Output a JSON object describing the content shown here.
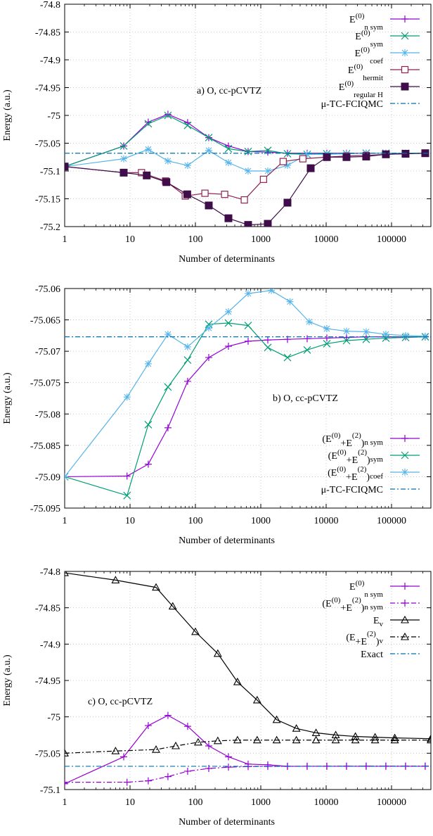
{
  "chart_data": [
    {
      "type": "line",
      "annotation": "a) O, cc-pCVTZ",
      "xlabel": "Number of determinants",
      "ylabel": "Energy (a.u.)",
      "xscale": "log",
      "xlim": [
        1,
        400000
      ],
      "ylim": [
        -75.2,
        -74.8
      ],
      "xticks": [
        1,
        10,
        100,
        1000,
        10000,
        100000
      ],
      "xtick_labels": [
        "1",
        "10",
        "100",
        "1000",
        "10000",
        "100000"
      ],
      "yticks": [
        -75.2,
        -75.15,
        -75.1,
        -75.05,
        -75,
        -74.95,
        -74.9,
        -74.85,
        -74.8
      ],
      "ytick_labels": [
        "-75.2",
        "-75.15",
        "-75.1",
        "-75.05",
        "-75",
        "-74.95",
        "-74.9",
        "-74.85",
        "-74.8"
      ],
      "grid": true,
      "legend_position": "top-right",
      "series": [
        {
          "legend_main": "E",
          "legend_sup": "(0)",
          "legend_sub": "n sym",
          "legend_pre": "",
          "legend_mid": "",
          "legend_post": "",
          "color": "#9400d3",
          "marker": "plus",
          "dash": "solid",
          "x": [
            1,
            8,
            19,
            38,
            76,
            160,
            320,
            640,
            1280,
            2560,
            5120,
            10240,
            20480,
            40960,
            81920,
            163840,
            327680
          ],
          "y": [
            -75.092,
            -75.055,
            -75.012,
            -74.998,
            -75.013,
            -75.04,
            -75.055,
            -75.065,
            -75.066,
            -75.068,
            -75.068,
            -75.068,
            -75.068,
            -75.068,
            -75.068,
            -75.068,
            -75.068
          ]
        },
        {
          "legend_main": "E",
          "legend_sup": "(0)",
          "legend_sub": "sym",
          "legend_pre": "",
          "legend_mid": "",
          "legend_post": "",
          "color": "#009e73",
          "marker": "x",
          "dash": "solid",
          "x": [
            1,
            8,
            19,
            38,
            76,
            160,
            320,
            640,
            1280,
            2560,
            5120,
            10240,
            20480,
            40960,
            81920,
            163840,
            327680
          ],
          "y": [
            -75.092,
            -75.055,
            -75.015,
            -75.0,
            -75.018,
            -75.04,
            -75.06,
            -75.065,
            -75.063,
            -75.069,
            -75.07,
            -75.069,
            -75.069,
            -75.068,
            -75.068,
            -75.068,
            -75.068
          ]
        },
        {
          "legend_main": "E",
          "legend_sup": "(0)",
          "legend_sub": "coef",
          "legend_pre": "",
          "legend_mid": "",
          "legend_post": "",
          "color": "#56b4e9",
          "marker": "star",
          "dash": "solid",
          "x": [
            1,
            8,
            19,
            38,
            76,
            160,
            320,
            640,
            1280,
            2560,
            5120,
            10240,
            20480,
            40960,
            81920,
            163840,
            327680
          ],
          "y": [
            -75.092,
            -75.078,
            -75.061,
            -75.082,
            -75.09,
            -75.063,
            -75.085,
            -75.1,
            -75.1,
            -75.09,
            -75.07,
            -75.07,
            -75.069,
            -75.068,
            -75.068,
            -75.068,
            -75.068
          ]
        },
        {
          "legend_main": "E",
          "legend_sup": "(0)",
          "legend_sub": "hermit",
          "legend_pre": "",
          "legend_mid": "",
          "legend_post": "",
          "color": "#8b2252",
          "marker": "square-open",
          "dash": "solid",
          "x": [
            1,
            8,
            15,
            35,
            70,
            140,
            280,
            560,
            1100,
            2200,
            4400,
            10240,
            20480,
            40960,
            81920,
            163840,
            327680
          ],
          "y": [
            -75.092,
            -75.103,
            -75.103,
            -75.118,
            -75.145,
            -75.14,
            -75.142,
            -75.152,
            -75.115,
            -75.083,
            -75.078,
            -75.075,
            -75.073,
            -75.072,
            -75.07,
            -75.069,
            -75.068
          ]
        },
        {
          "legend_main": "E",
          "legend_sup": "(0)",
          "legend_sub": "regular H",
          "legend_pre": "",
          "legend_mid": "",
          "legend_post": "",
          "color": "#3f0d4a",
          "marker": "square-filled",
          "dash": "solid",
          "x": [
            1,
            8,
            18,
            36,
            75,
            160,
            320,
            640,
            1280,
            2560,
            5800,
            10240,
            20480,
            40960,
            81920,
            163840,
            327680
          ],
          "y": [
            -75.092,
            -75.103,
            -75.108,
            -75.12,
            -75.142,
            -75.162,
            -75.185,
            -75.197,
            -75.195,
            -75.157,
            -75.095,
            -75.075,
            -75.075,
            -75.074,
            -75.07,
            -75.069,
            -75.068
          ]
        },
        {
          "legend_main": "μ-TC-FCIQMC",
          "legend_sup": "",
          "legend_sub": "",
          "legend_pre": "",
          "legend_mid": "",
          "legend_post": "",
          "color": "#0072b2",
          "marker": "none",
          "dash": "dashdot",
          "hline": -75.068
        }
      ]
    },
    {
      "type": "line",
      "annotation": "b) O, cc-pCVTZ",
      "xlabel": "Number of determinants",
      "ylabel": "Energy (a.u.)",
      "xscale": "log",
      "xlim": [
        1,
        400000
      ],
      "ylim": [
        -75.095,
        -75.06
      ],
      "xticks": [
        1,
        10,
        100,
        1000,
        10000,
        100000
      ],
      "xtick_labels": [
        "1",
        "10",
        "100",
        "1000",
        "10000",
        "100000"
      ],
      "yticks": [
        -75.095,
        -75.09,
        -75.085,
        -75.08,
        -75.075,
        -75.07,
        -75.065,
        -75.06
      ],
      "ytick_labels": [
        "-75.095",
        "-75.09",
        "-75.085",
        "-75.08",
        "-75.075",
        "-75.07",
        "-75.065",
        "-75.06"
      ],
      "grid": true,
      "legend_position": "bottom-right",
      "series": [
        {
          "legend_main": "",
          "legend_sup": "(0)",
          "legend_sub": "n sym",
          "legend_pre": "(E",
          "legend_mid": "+E",
          "legend_post": ")",
          "legend_sup2": "(2)",
          "color": "#9400d3",
          "marker": "plus",
          "dash": "solid",
          "x": [
            1,
            9,
            19,
            38,
            76,
            160,
            320,
            640,
            1280,
            2560,
            5120,
            10240,
            20480,
            40960,
            81920,
            163840,
            327680
          ],
          "y": [
            -75.09,
            -75.0899,
            -75.088,
            -75.0822,
            -75.0748,
            -75.071,
            -75.0692,
            -75.0684,
            -75.0682,
            -75.0681,
            -75.068,
            -75.0679,
            -75.0678,
            -75.0677,
            -75.0677,
            -75.0677,
            -75.0677
          ]
        },
        {
          "legend_main": "",
          "legend_sup": "(0)",
          "legend_sub": "sym",
          "legend_pre": "(E",
          "legend_mid": "+E",
          "legend_post": ")",
          "legend_sup2": "(2)",
          "color": "#009e73",
          "marker": "x",
          "dash": "solid",
          "x": [
            1,
            9,
            19,
            38,
            76,
            160,
            320,
            640,
            1280,
            2560,
            5120,
            10240,
            20480,
            40960,
            81920,
            163840,
            327680
          ],
          "y": [
            -75.09,
            -75.093,
            -75.0817,
            -75.0757,
            -75.0714,
            -75.0657,
            -75.0655,
            -75.0659,
            -75.0694,
            -75.071,
            -75.0698,
            -75.0688,
            -75.0683,
            -75.0681,
            -75.0679,
            -75.0678,
            -75.0677
          ]
        },
        {
          "legend_main": "",
          "legend_sup": "(0)",
          "legend_sub": "coef",
          "legend_pre": "(E",
          "legend_mid": "+E",
          "legend_post": ")",
          "legend_sup2": "(2)",
          "color": "#56b4e9",
          "marker": "star",
          "dash": "solid",
          "x": [
            1,
            9,
            19,
            38,
            76,
            160,
            320,
            640,
            1450,
            2800,
            5500,
            10240,
            20480,
            40960,
            81920,
            163840,
            327680
          ],
          "y": [
            -75.09,
            -75.0773,
            -75.072,
            -75.0673,
            -75.0693,
            -75.0663,
            -75.0637,
            -75.0608,
            -75.0603,
            -75.0621,
            -75.0653,
            -75.0664,
            -75.0668,
            -75.0669,
            -75.0673,
            -75.0675,
            -75.0676
          ]
        },
        {
          "legend_main": "μ-TC-FCIQMC",
          "legend_sup": "",
          "legend_sub": "",
          "legend_pre": "",
          "legend_mid": "",
          "legend_post": "",
          "color": "#0072b2",
          "marker": "none",
          "dash": "dashdot",
          "hline": -75.0677
        }
      ]
    },
    {
      "type": "line",
      "annotation": "c) O, cc-pCVTZ",
      "xlabel": "Number of determinants",
      "ylabel": "Energy (a.u.)",
      "xscale": "log",
      "xlim": [
        1,
        400000
      ],
      "ylim": [
        -75.1,
        -74.8
      ],
      "xticks": [
        1,
        10,
        100,
        1000,
        10000,
        100000
      ],
      "xtick_labels": [
        "1",
        "10",
        "100",
        "1000",
        "10000",
        "100000"
      ],
      "yticks": [
        -75.1,
        -75.05,
        -75,
        -74.95,
        -74.9,
        -74.85,
        -74.8
      ],
      "ytick_labels": [
        "-75.1",
        "-75.05",
        "-75",
        "-74.95",
        "-74.9",
        "-74.85",
        "-74.8"
      ],
      "grid": true,
      "legend_position": "top-right",
      "series": [
        {
          "legend_main": "E",
          "legend_sup": "(0)",
          "legend_sub": "n sym",
          "legend_pre": "",
          "legend_mid": "",
          "legend_post": "",
          "color": "#9400d3",
          "marker": "plus",
          "dash": "solid",
          "x": [
            1,
            8,
            19,
            38,
            76,
            160,
            320,
            640,
            1280,
            2560,
            5120,
            10240,
            20480,
            40960,
            81920,
            163840,
            327680
          ],
          "y": [
            -75.092,
            -75.055,
            -75.012,
            -74.998,
            -75.013,
            -75.04,
            -75.055,
            -75.065,
            -75.066,
            -75.068,
            -75.068,
            -75.068,
            -75.068,
            -75.068,
            -75.068,
            -75.068,
            -75.068
          ]
        },
        {
          "legend_main": "",
          "legend_sup": "(0)",
          "legend_sub": "n sym",
          "legend_pre": "(E",
          "legend_mid": "+E",
          "legend_post": ")",
          "legend_sup2": "(2)",
          "color": "#9400d3",
          "marker": "plus",
          "dash": "dashdot",
          "x": [
            1,
            9,
            19,
            38,
            76,
            160,
            320,
            640,
            1280,
            2560,
            5120,
            10240,
            20480,
            40960,
            81920,
            163840,
            327680
          ],
          "y": [
            -75.09,
            -75.0899,
            -75.088,
            -75.0822,
            -75.0748,
            -75.071,
            -75.0692,
            -75.0684,
            -75.0682,
            -75.0681,
            -75.068,
            -75.0679,
            -75.0678,
            -75.0677,
            -75.0677,
            -75.0677,
            -75.0677
          ]
        },
        {
          "legend_main": "E",
          "legend_sup": "",
          "legend_sub": "v",
          "legend_pre": "",
          "legend_mid": "",
          "legend_post": "",
          "color": "#000000",
          "marker": "triangle",
          "dash": "solid",
          "x": [
            1,
            6,
            25,
            45,
            100,
            220,
            440,
            880,
            1750,
            3500,
            7000,
            14000,
            28000,
            56000,
            112000,
            400000
          ],
          "y": [
            -74.802,
            -74.812,
            -74.822,
            -74.848,
            -74.883,
            -74.913,
            -74.952,
            -74.977,
            -75.004,
            -75.016,
            -75.022,
            -75.025,
            -75.027,
            -75.028,
            -75.029,
            -75.03
          ]
        },
        {
          "legend_main": "",
          "legend_sup": "",
          "legend_sub": "v",
          "legend_pre": "(E",
          "legend_mid": "+E",
          "legend_post": ")",
          "legend_sup2": "(2)",
          "color": "#000000",
          "marker": "triangle",
          "dash": "dashdot",
          "x": [
            1,
            6,
            25,
            50,
            110,
            220,
            440,
            880,
            1750,
            3500,
            7000,
            14000,
            28000,
            56000,
            112000,
            400000
          ],
          "y": [
            -75.05,
            -75.047,
            -75.045,
            -75.04,
            -75.035,
            -75.033,
            -75.032,
            -75.032,
            -75.032,
            -75.032,
            -75.032,
            -75.032,
            -75.032,
            -75.032,
            -75.032,
            -75.032
          ]
        },
        {
          "legend_main": "Exact",
          "legend_sup": "",
          "legend_sub": "",
          "legend_pre": "",
          "legend_mid": "",
          "legend_post": "",
          "color": "#0072b2",
          "marker": "none",
          "dash": "dashdot",
          "hline": -75.068
        }
      ]
    }
  ]
}
